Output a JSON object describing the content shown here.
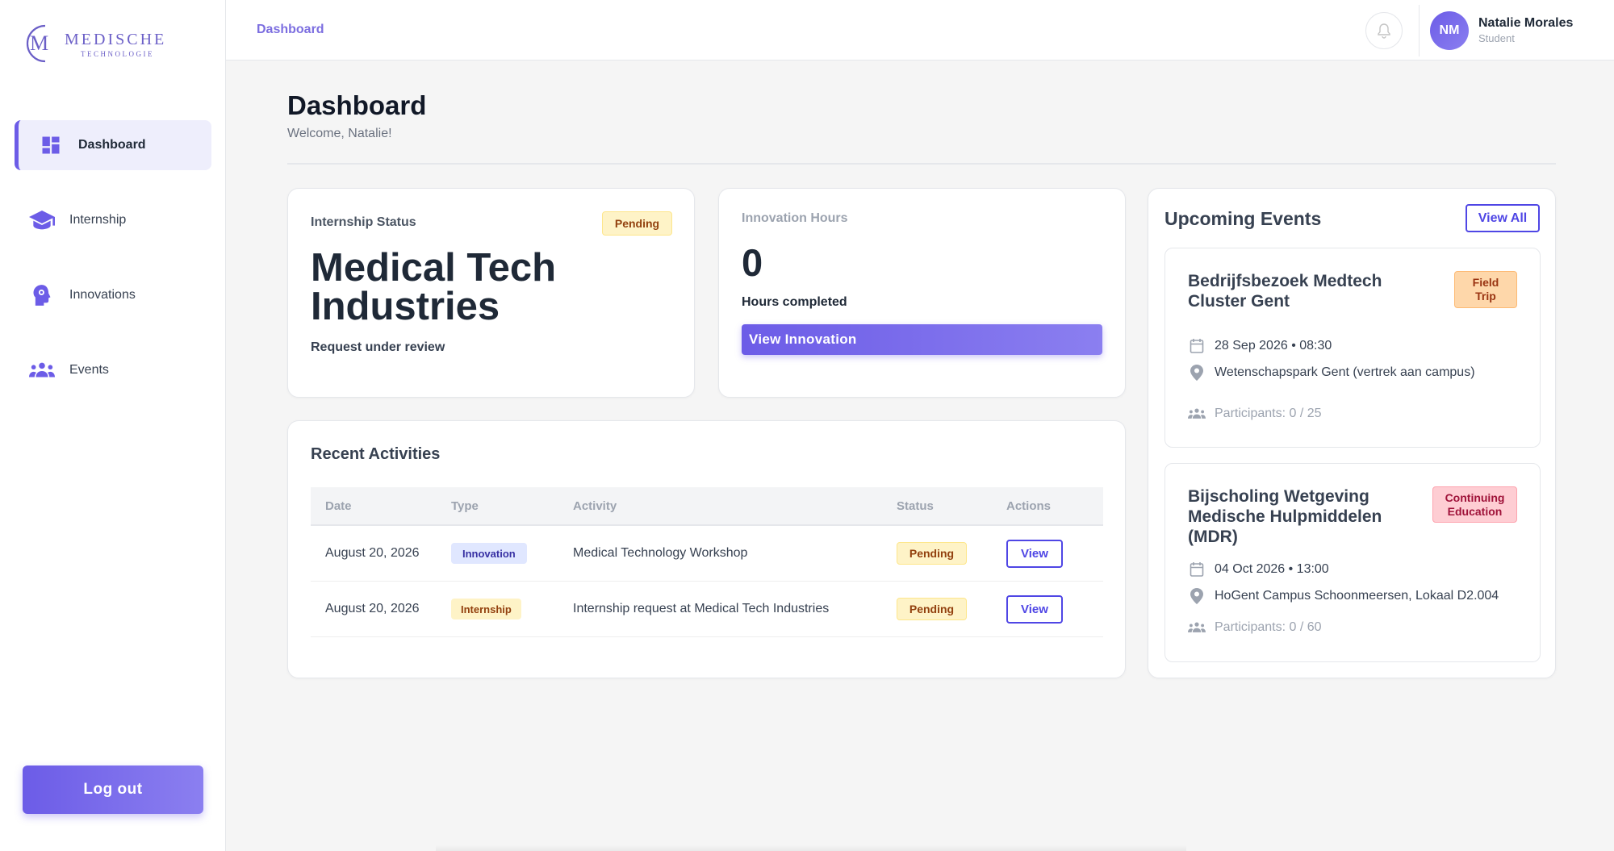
{
  "brand": {
    "name_line1": "MEDISCHE",
    "name_line2": "TECHNOLOGIE",
    "mark_letter": "M"
  },
  "sidebar": {
    "items": [
      {
        "label": "Dashboard",
        "icon": "dashboard-icon",
        "active": true
      },
      {
        "label": "Internship",
        "icon": "graduation-cap-icon",
        "active": false
      },
      {
        "label": "Innovations",
        "icon": "lightbulb-head-icon",
        "active": false
      },
      {
        "label": "Events",
        "icon": "people-group-icon",
        "active": false
      }
    ],
    "logout_label": "Log out"
  },
  "header": {
    "breadcrumb": "Dashboard",
    "user": {
      "initials": "NM",
      "name": "Natalie Morales",
      "role": "Student"
    }
  },
  "page": {
    "title": "Dashboard",
    "welcome": "Welcome, Natalie!"
  },
  "internship_card": {
    "label": "Internship Status",
    "status": "Pending",
    "company": "Medical Tech Industries",
    "note": "Request under review"
  },
  "hours_card": {
    "label": "Innovation Hours",
    "value": "0",
    "caption": "Hours completed",
    "button_label": "View Innovation"
  },
  "activities": {
    "title": "Recent Activities",
    "columns": [
      "Date",
      "Type",
      "Activity",
      "Status",
      "Actions"
    ],
    "rows": [
      {
        "date": "August 20, 2026",
        "type": "Innovation",
        "activity": "Medical Technology Workshop",
        "status": "Pending",
        "action": "View"
      },
      {
        "date": "August 20, 2026",
        "type": "Internship",
        "activity": "Internship request at Medical Tech Industries",
        "status": "Pending",
        "action": "View"
      }
    ]
  },
  "events": {
    "title": "Upcoming Events",
    "view_all_label": "View All",
    "items": [
      {
        "title": "Bedrijfsbezoek Medtech Cluster Gent",
        "badge_line1": "Field",
        "badge_line2": "Trip",
        "datetime": "28 Sep 2026 • 08:30",
        "location": "Wetenschapspark Gent (vertrek aan campus)",
        "participants": "Participants: 0 / 25"
      },
      {
        "title": "Bijscholing Wetgeving Medische Hulpmiddelen (MDR)",
        "badge_line1": "Continuing",
        "badge_line2": "Education",
        "datetime": "04 Oct 2026 • 13:00",
        "location": "HoGent Campus Schoonmeersen, Lokaal D2.004",
        "participants": "Participants: 0 / 60"
      }
    ]
  },
  "colors": {
    "accent": "#6c5ce7",
    "accent_light": "#8b7ff0",
    "pending_bg": "#fef3c7",
    "pending_text": "#92400e"
  }
}
